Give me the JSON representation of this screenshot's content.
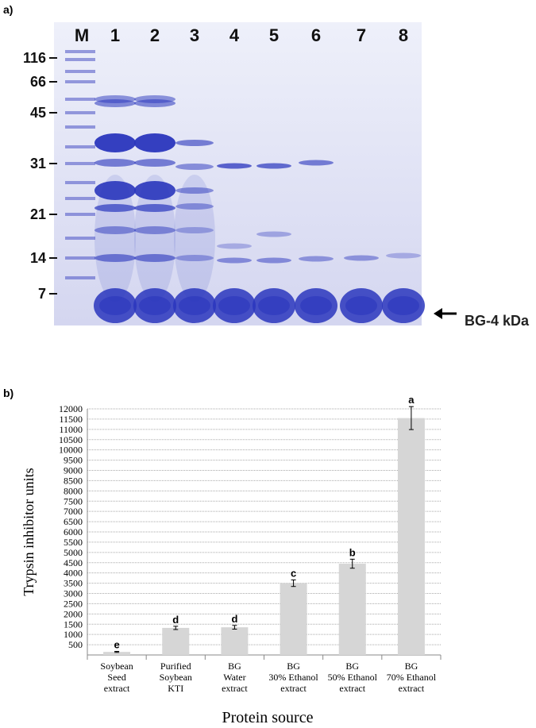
{
  "panel_labels": [
    "a)",
    "b)"
  ],
  "gel": {
    "lane_labels": [
      "M",
      "1",
      "2",
      "3",
      "4",
      "5",
      "6",
      "7",
      "8"
    ],
    "marker_labels": [
      "116",
      "66",
      "45",
      "31",
      "21",
      "14",
      "7"
    ],
    "arrow_label": "BG-4 kDa"
  },
  "chart_data": {
    "type": "bar",
    "categories": [
      [
        "Soybean",
        "Seed",
        "extract"
      ],
      [
        "Purified",
        "Soybean",
        "KTI"
      ],
      [
        "BG",
        "Water",
        "extract"
      ],
      [
        "BG",
        "30% Ethanol",
        "extract"
      ],
      [
        "BG",
        "50% Ethanol",
        "extract"
      ],
      [
        "BG",
        "70% Ethanol",
        "extract"
      ]
    ],
    "values": [
      150,
      1320,
      1350,
      3500,
      4450,
      11550
    ],
    "errors": [
      25,
      80,
      90,
      160,
      220,
      560
    ],
    "annotations": [
      "e",
      "d",
      "d",
      "c",
      "b",
      "a"
    ],
    "color": "#d6d6d6",
    "ylabel": "Trypsin inhibitor units",
    "xlabel": "Protein source",
    "ylim": [
      0,
      12000
    ],
    "yticks": [
      500,
      1000,
      1500,
      2000,
      2500,
      3000,
      3500,
      4000,
      4500,
      5000,
      5500,
      6000,
      6500,
      7000,
      7500,
      8000,
      8500,
      9000,
      9500,
      10000,
      10500,
      11000,
      11500,
      12000
    ],
    "grid": true
  }
}
